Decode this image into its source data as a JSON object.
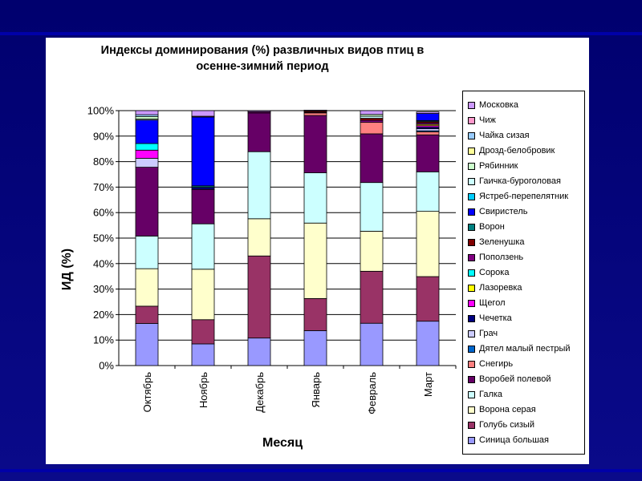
{
  "chart_data": {
    "type": "bar",
    "stacked": true,
    "title_lines": [
      "Индексы доминирования (%) развличных видов птиц в",
      "осенне-зимний период"
    ],
    "xlabel": "Месяц",
    "ylabel": "ИД (%)",
    "ylim": [
      0,
      100
    ],
    "yticks": [
      "0%",
      "10%",
      "20%",
      "30%",
      "40%",
      "50%",
      "60%",
      "70%",
      "80%",
      "90%",
      "100%"
    ],
    "categories": [
      "Октябрь",
      "Ноябрь",
      "Декабрь",
      "Январь",
      "Февраль",
      "Март"
    ],
    "legend_position": "right",
    "series": [
      {
        "name": "Синица большая",
        "color": "#9999ff",
        "values": [
          16.5,
          8.5,
          10.8,
          13.7,
          16.6,
          17.4
        ]
      },
      {
        "name": "Голубь сизый",
        "color": "#993366",
        "values": [
          6.8,
          9.5,
          32.2,
          12.6,
          20.4,
          17.5
        ]
      },
      {
        "name": "Ворона серая",
        "color": "#ffffcc",
        "values": [
          14.7,
          19.8,
          14.6,
          29.6,
          15.7,
          25.6
        ]
      },
      {
        "name": "Галка",
        "color": "#ccffff",
        "values": [
          12.8,
          17.8,
          26.3,
          19.7,
          19.1,
          15.5
        ]
      },
      {
        "name": "Воробей полевой",
        "color": "#660066",
        "values": [
          27.0,
          13.5,
          15.2,
          22.5,
          19.1,
          14.5
        ]
      },
      {
        "name": "Снегирь",
        "color": "#ff8080",
        "values": [
          0,
          0,
          0,
          1.0,
          4.5,
          1.2
        ]
      },
      {
        "name": "Дятел малый пестрый",
        "color": "#0066cc",
        "values": [
          0,
          0,
          0,
          0,
          0,
          0.4
        ]
      },
      {
        "name": "Грач",
        "color": "#ccccff",
        "values": [
          3.5,
          0,
          0,
          0,
          0,
          0.8
        ]
      },
      {
        "name": "Чечетка",
        "color": "#000080",
        "values": [
          0,
          0.8,
          0,
          0,
          0,
          0.6
        ]
      },
      {
        "name": "Щегол",
        "color": "#ff00ff",
        "values": [
          3.2,
          0,
          0,
          0,
          0,
          0.6
        ]
      },
      {
        "name": "Лазоревка",
        "color": "#ffff00",
        "values": [
          0,
          0,
          0,
          0,
          0,
          0.5
        ]
      },
      {
        "name": "Сорока",
        "color": "#00ffff",
        "values": [
          2.6,
          0,
          0,
          0,
          0,
          0
        ]
      },
      {
        "name": "Поползень",
        "color": "#800080",
        "values": [
          0,
          0,
          0.5,
          0.3,
          0.8,
          0.6
        ]
      },
      {
        "name": "Зеленушка",
        "color": "#800000",
        "values": [
          0,
          0,
          0,
          0.5,
          0.8,
          0.5
        ]
      },
      {
        "name": "Ворон",
        "color": "#008080",
        "values": [
          0,
          0.6,
          0,
          0,
          0,
          0.4
        ]
      },
      {
        "name": "Свиристель",
        "color": "#0000ff",
        "values": [
          9.2,
          27.0,
          0,
          0,
          0,
          2.8
        ]
      },
      {
        "name": "Ястреб-перепелятник",
        "color": "#00ccff",
        "values": [
          0,
          0,
          0,
          0,
          0,
          0
        ]
      },
      {
        "name": "Гаичка-буроголовая",
        "color": "#ccffff",
        "values": [
          0.4,
          0,
          0,
          0,
          0.8,
          0
        ]
      },
      {
        "name": "Рябинник",
        "color": "#ccffcc",
        "values": [
          1.0,
          0,
          0,
          0,
          0.7,
          0
        ]
      },
      {
        "name": "Дрозд-белобровик",
        "color": "#ffff99",
        "values": [
          0,
          0,
          0,
          0,
          0,
          0
        ]
      },
      {
        "name": "Чайка сизая",
        "color": "#99ccff",
        "values": [
          0.7,
          0,
          0,
          0,
          0,
          0
        ]
      },
      {
        "name": "Чиж",
        "color": "#ff99cc",
        "values": [
          0,
          0.3,
          0,
          0,
          0,
          0
        ]
      },
      {
        "name": "Московка",
        "color": "#cc99ff",
        "values": [
          1.6,
          2.2,
          0.4,
          0.3,
          1.5,
          0.6
        ]
      }
    ]
  }
}
